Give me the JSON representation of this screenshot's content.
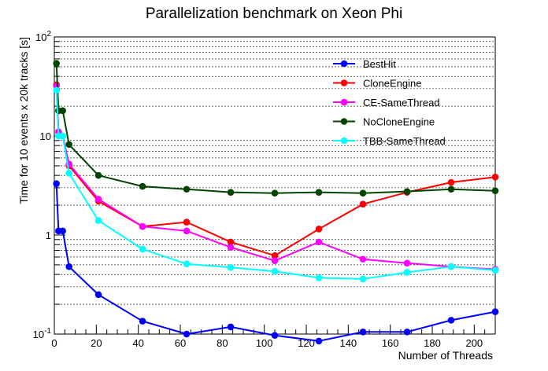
{
  "chart_data": {
    "type": "line",
    "title": "Parallelization benchmark on Xeon Phi",
    "xlabel": "Number of Threads",
    "ylabel": "Time for 10 events x 20k tracks [s]",
    "xlim": [
      0,
      210
    ],
    "ylim": [
      0.1,
      100
    ],
    "y_scale": "log",
    "grid": "horizontal",
    "legend_position": "top-right",
    "x_ticks": [
      0,
      20,
      40,
      60,
      80,
      100,
      120,
      140,
      160,
      180,
      200
    ],
    "x_tick_labels": [
      "0",
      "20",
      "40",
      "60",
      "80",
      "100",
      "120",
      "140",
      "160",
      "180",
      "200"
    ],
    "y_ticks": [
      {
        "value": 0.1,
        "base": "10",
        "exp": "-1"
      },
      {
        "value": 1,
        "base": "1",
        "exp": ""
      },
      {
        "value": 10,
        "base": "10",
        "exp": ""
      },
      {
        "value": 100,
        "base": "10",
        "exp": "2"
      }
    ],
    "x": [
      1,
      2,
      4,
      7,
      21,
      42,
      63,
      84,
      105,
      126,
      147,
      168,
      189,
      210
    ],
    "series": [
      {
        "name": "BestHit",
        "color": "#0000ff",
        "values": [
          3.3,
          1.1,
          1.1,
          0.48,
          0.25,
          0.135,
          0.1,
          0.118,
          0.097,
          0.085,
          0.105,
          0.105,
          0.138,
          0.168
        ]
      },
      {
        "name": "CloneEngine",
        "color": "#ff0000",
        "values": [
          33,
          11,
          10,
          5.0,
          2.2,
          1.22,
          1.35,
          0.85,
          0.62,
          1.15,
          2.05,
          2.7,
          3.4,
          3.85
        ]
      },
      {
        "name": "CE-SameThread",
        "color": "#ff00ff",
        "values": [
          32,
          11,
          10,
          5.2,
          2.3,
          1.22,
          1.1,
          0.75,
          0.55,
          0.85,
          0.57,
          0.52,
          0.48,
          0.45
        ]
      },
      {
        "name": "NoCloneEngine",
        "color": "#004400",
        "values": [
          54,
          18,
          18,
          8.2,
          4.0,
          3.1,
          2.9,
          2.7,
          2.65,
          2.7,
          2.65,
          2.75,
          2.9,
          2.8
        ]
      },
      {
        "name": "TBB-SameThread",
        "color": "#00ffff",
        "values": [
          29,
          10,
          10,
          4.2,
          1.4,
          0.72,
          0.51,
          0.47,
          0.43,
          0.37,
          0.36,
          0.42,
          0.48,
          0.44
        ]
      }
    ]
  }
}
